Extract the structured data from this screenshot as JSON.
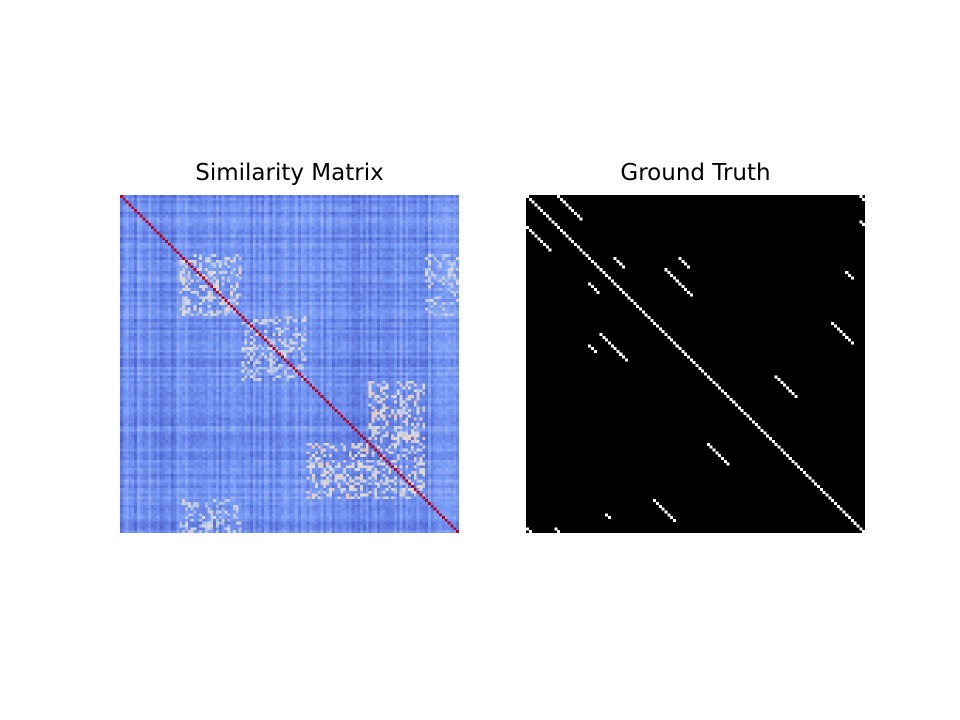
{
  "chart_data": [
    {
      "type": "heatmap",
      "title": "Similarity Matrix",
      "colormap": "coolwarm",
      "matrix_size": 120,
      "value_range": [
        0,
        1
      ],
      "diagonal_value": 1.0,
      "background_value_range": [
        0.05,
        0.35
      ],
      "block_boundaries": [
        21,
        43,
        66,
        88,
        108,
        120
      ],
      "highlight_blocks": [
        {
          "rows": [
            21,
            43
          ],
          "cols": [
            21,
            43
          ],
          "value": 0.55
        },
        {
          "rows": [
            43,
            66
          ],
          "cols": [
            43,
            66
          ],
          "value": 0.5
        },
        {
          "rows": [
            66,
            88
          ],
          "cols": [
            88,
            108
          ],
          "value": 0.6
        },
        {
          "rows": [
            88,
            108
          ],
          "cols": [
            88,
            108
          ],
          "value": 0.55
        },
        {
          "rows": [
            108,
            120
          ],
          "cols": [
            21,
            43
          ],
          "value": 0.5
        }
      ],
      "axis_visible": false,
      "grid": false
    },
    {
      "type": "heatmap",
      "title": "Ground Truth",
      "colormap": "gray",
      "matrix_size": 120,
      "value_range": [
        0,
        1
      ],
      "background_value": 0,
      "main_diagonal": true,
      "diagonal_segments": [
        {
          "row": 0,
          "col": 0,
          "length": 120
        },
        {
          "row": 0,
          "col": 11,
          "length": 9
        },
        {
          "row": 11,
          "col": 0,
          "length": 9
        },
        {
          "row": 22,
          "col": 31,
          "length": 4
        },
        {
          "row": 31,
          "col": 22,
          "length": 4
        },
        {
          "row": 26,
          "col": 49,
          "length": 10
        },
        {
          "row": 49,
          "col": 26,
          "length": 10
        },
        {
          "row": 22,
          "col": 54,
          "length": 4
        },
        {
          "row": 27,
          "col": 113,
          "length": 3
        },
        {
          "row": 45,
          "col": 108,
          "length": 8
        },
        {
          "row": 64,
          "col": 88,
          "length": 8
        },
        {
          "row": 88,
          "col": 64,
          "length": 8
        },
        {
          "row": 108,
          "col": 45,
          "length": 8
        },
        {
          "row": 0,
          "col": 118,
          "length": 2
        },
        {
          "row": 9,
          "col": 118,
          "length": 2
        },
        {
          "row": 118,
          "col": 0,
          "length": 2
        },
        {
          "row": 118,
          "col": 10,
          "length": 2
        },
        {
          "row": 113,
          "col": 28,
          "length": 2
        },
        {
          "row": 53,
          "col": 22,
          "length": 3
        }
      ],
      "axis_visible": false,
      "grid": false
    }
  ]
}
